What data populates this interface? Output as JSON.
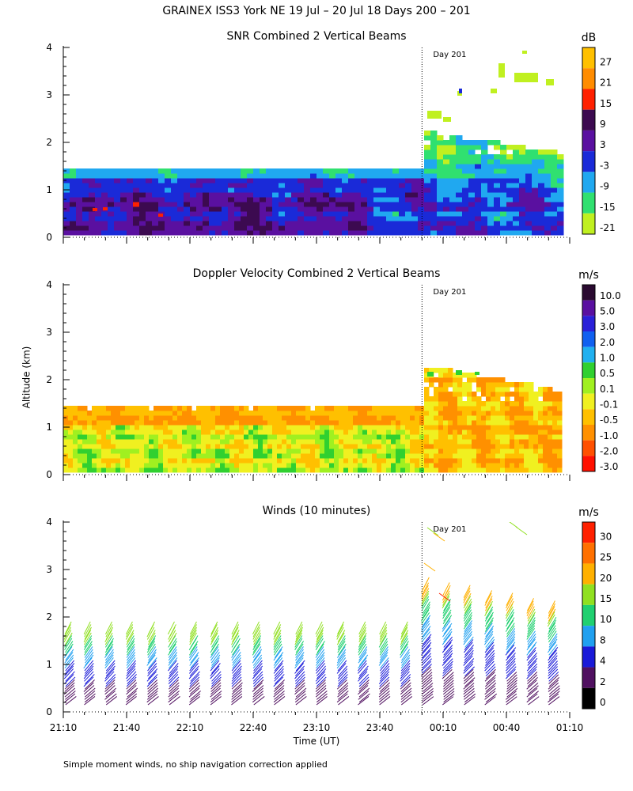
{
  "title": "GRAINEX ISS3 York NE  19 Jul – 20 Jul 18 Days 200 – 201",
  "xlabel": "Time (UT)",
  "ylabel": "Altitude (km)",
  "footnote": "Simple moment winds, no ship navigation correction applied",
  "day_marker": "Day 201",
  "x_ticks": [
    "21:10",
    "21:40",
    "22:10",
    "22:40",
    "23:10",
    "23:40",
    "00:10",
    "00:40",
    "01:10"
  ],
  "y_ticks": [
    "0",
    "1",
    "2",
    "3",
    "4"
  ],
  "panels": [
    {
      "title": "SNR Combined 2 Vertical Beams",
      "unit": "dB",
      "colorbar": {
        "labels": [
          "27",
          "21",
          "15",
          "9",
          "3",
          "-3",
          "-9",
          "-15",
          "-21"
        ],
        "colors": [
          "#ffc000",
          "#ff8c00",
          "#ff2000",
          "#3c0a50",
          "#5a10a0",
          "#1a2ad8",
          "#20a8f0",
          "#30e070",
          "#c0f020"
        ]
      }
    },
    {
      "title": "Doppler Velocity Combined 2 Vertical Beams",
      "unit": "m/s",
      "colorbar": {
        "labels": [
          "10.0",
          "5.0",
          "3.0",
          "2.0",
          "1.0",
          "0.5",
          "0.1",
          "-0.1",
          "-0.5",
          "-1.0",
          "-2.0",
          "-3.0"
        ],
        "colors": [
          "#2a0a30",
          "#5a10a0",
          "#2a20d8",
          "#1060f0",
          "#20b0f0",
          "#30d030",
          "#a0f020",
          "#f0f020",
          "#ffc000",
          "#ff9000",
          "#ff5000",
          "#ff1000"
        ]
      }
    },
    {
      "title": "Winds (10 minutes)",
      "unit": "m/s",
      "colorbar": {
        "labels": [
          "30",
          "25",
          "20",
          "15",
          "10",
          "8",
          "4",
          "2",
          "0"
        ],
        "colors": [
          "#ff2000",
          "#ff7000",
          "#ffb000",
          "#90e020",
          "#20d070",
          "#20a0f0",
          "#1a1ad8",
          "#501060",
          "#000000"
        ]
      }
    }
  ],
  "chart_data": [
    {
      "type": "heatmap",
      "title": "SNR Combined 2 Vertical Beams",
      "variable": "SNR",
      "unit": "dB",
      "x_range": [
        "21:10",
        "01:10"
      ],
      "y_range": [
        0,
        4
      ],
      "ylabel": "Altitude (km)",
      "day_boundary": "00:00",
      "layer_top_km": {
        "before_00:00": 1.4,
        "after_00:00": 2.2
      },
      "color_scale": [
        "-21",
        "-15",
        "-9",
        "-3",
        "3",
        "9",
        "15",
        "21",
        "27"
      ]
    },
    {
      "type": "heatmap",
      "title": "Doppler Velocity Combined 2 Vertical Beams",
      "variable": "Doppler velocity",
      "unit": "m/s",
      "x_range": [
        "21:10",
        "01:10"
      ],
      "y_range": [
        0,
        4
      ],
      "ylabel": "Altitude (km)",
      "day_boundary": "00:00",
      "layer_top_km": {
        "before_00:00": 1.4,
        "after_00:00": 2.2
      },
      "color_scale": [
        "-3.0",
        "-2.0",
        "-1.0",
        "-0.5",
        "-0.1",
        "0.1",
        "0.5",
        "1.0",
        "2.0",
        "3.0",
        "5.0",
        "10.0"
      ]
    },
    {
      "type": "scatter",
      "title": "Winds (10 minutes)",
      "variable": "wind barbs",
      "unit": "m/s",
      "x_range": [
        "21:10",
        "01:10"
      ],
      "y_range": [
        0,
        4
      ],
      "ylabel": "Altitude (km)",
      "xlabel": "Time (UT)",
      "day_boundary": "00:00",
      "barb_columns": [
        "21:10",
        "21:20",
        "21:30",
        "21:40",
        "21:50",
        "22:00",
        "22:10",
        "22:20",
        "22:30",
        "22:40",
        "22:50",
        "23:00",
        "23:10",
        "23:20",
        "23:30",
        "23:40",
        "23:50",
        "00:00",
        "00:10",
        "00:20",
        "00:30",
        "00:40",
        "00:50",
        "01:00"
      ],
      "color_scale": [
        "0",
        "2",
        "4",
        "8",
        "10",
        "15",
        "20",
        "25",
        "30"
      ]
    }
  ]
}
